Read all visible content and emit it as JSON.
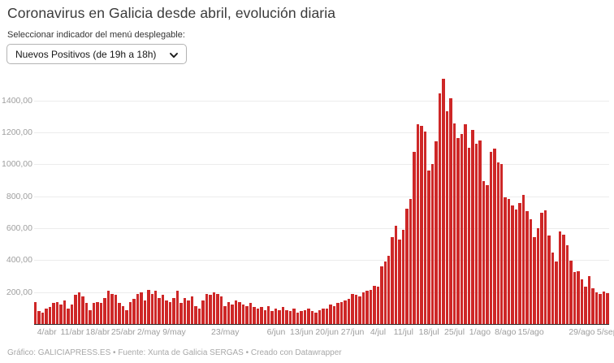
{
  "header": {
    "title": "Coronavirus en Galicia desde abril, evolución diaria",
    "instruction": "Seleccionar indicador del menú desplegable:"
  },
  "dropdown": {
    "selected_option": "Nuevos Positivos (de 19h a 18h)",
    "chevron_icon": "chevron-down"
  },
  "footer": {
    "credits": "Gráfico: GALICIAPRESS.ES • Fuente: Xunta de Galicia SERGAS • Creado con Datawrapper"
  },
  "colors": {
    "bar": "#ce2727",
    "axis_line": "#2e2e2e",
    "axis_text": "#9e9e9e",
    "gridline": "#ececec",
    "title_text": "#3a3a3a"
  },
  "chart_data": {
    "type": "bar",
    "title": "Coronavirus en Galicia desde abril, evolución diaria",
    "xlabel": "",
    "ylabel": "",
    "legend": "none",
    "grid": "horizontal",
    "ylim": [
      0,
      1557
    ],
    "date_range": "1/abr – 5/sep (una barra por día, 158 días)",
    "values": [
      139,
      80,
      71,
      97,
      105,
      131,
      139,
      122,
      148,
      97,
      122,
      182,
      198,
      173,
      131,
      88,
      131,
      139,
      131,
      164,
      207,
      190,
      182,
      131,
      113,
      88,
      139,
      156,
      190,
      198,
      148,
      215,
      190,
      207,
      164,
      182,
      148,
      139,
      164,
      207,
      131,
      164,
      148,
      173,
      113,
      97,
      148,
      190,
      182,
      198,
      190,
      173,
      113,
      139,
      122,
      148,
      139,
      122,
      113,
      131,
      105,
      97,
      107,
      88,
      113,
      80,
      97,
      88,
      107,
      88,
      80,
      97,
      71,
      80,
      88,
      97,
      80,
      71,
      88,
      97,
      97,
      122,
      113,
      131,
      139,
      148,
      156,
      190,
      182,
      173,
      198,
      207,
      215,
      240,
      232,
      360,
      393,
      427,
      546,
      614,
      529,
      589,
      724,
      784,
      1081,
      1250,
      1242,
      1207,
      962,
      1004,
      1145,
      1446,
      1535,
      1335,
      1415,
      1258,
      1166,
      1191,
      1250,
      1106,
      1216,
      1131,
      1148,
      894,
      868,
      1080,
      1098,
      1013,
      1004,
      792,
      784,
      741,
      716,
      758,
      809,
      707,
      656,
      546,
      602,
      699,
      711,
      555,
      449,
      393,
      580,
      560,
      495,
      398,
      326,
      331,
      280,
      232,
      300,
      224,
      198,
      190,
      202,
      193
    ],
    "y_ticks": [
      {
        "v": 200,
        "label": "200,00"
      },
      {
        "v": 400,
        "label": "400,00"
      },
      {
        "v": 600,
        "label": "600,00"
      },
      {
        "v": 800,
        "label": "800,00"
      },
      {
        "v": 1000,
        "label": "1000,00"
      },
      {
        "v": 1200,
        "label": "1200,00"
      },
      {
        "v": 1400,
        "label": "1400,00"
      }
    ],
    "x_ticks": [
      {
        "i": 3,
        "label": "4/abr"
      },
      {
        "i": 10,
        "label": "11/abr"
      },
      {
        "i": 17,
        "label": "18/abr"
      },
      {
        "i": 24,
        "label": "25/abr"
      },
      {
        "i": 31,
        "label": "2/may"
      },
      {
        "i": 38,
        "label": "9/may"
      },
      {
        "i": 52,
        "label": "23/may"
      },
      {
        "i": 66,
        "label": "6/jun"
      },
      {
        "i": 73,
        "label": "13/jun"
      },
      {
        "i": 80,
        "label": "20/jun"
      },
      {
        "i": 87,
        "label": "27/jun"
      },
      {
        "i": 94,
        "label": "4/jul"
      },
      {
        "i": 101,
        "label": "11/jul"
      },
      {
        "i": 108,
        "label": "18/jul"
      },
      {
        "i": 115,
        "label": "25/jul"
      },
      {
        "i": 122,
        "label": "1/ago"
      },
      {
        "i": 129,
        "label": "8/ago"
      },
      {
        "i": 136,
        "label": "15/ago"
      },
      {
        "i": 150,
        "label": "29/ago"
      },
      {
        "i": 157,
        "label": "5/sep"
      }
    ]
  }
}
